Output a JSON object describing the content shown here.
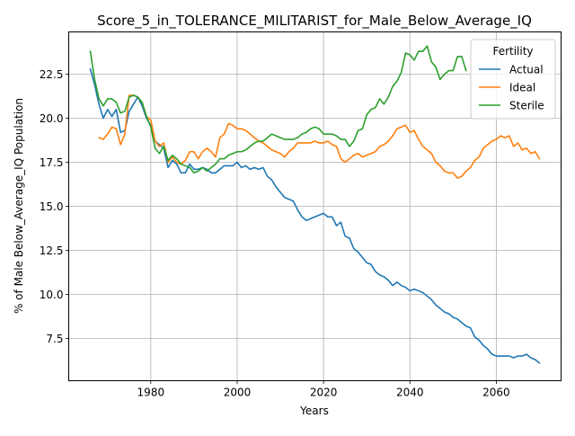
{
  "chart_data": {
    "type": "line",
    "title": "Score_5_in_TOLERANCE_MILITARIST_for_Male_Below_Average_IQ",
    "xlabel": "Years",
    "ylabel": "% of Male Below_Average_IQ Population",
    "xlim": [
      1961,
      2075
    ],
    "ylim": [
      5.1,
      24.9
    ],
    "xticks": [
      1980,
      2000,
      2020,
      2040,
      2060
    ],
    "yticks": [
      7.5,
      10.0,
      12.5,
      15.0,
      17.5,
      20.0,
      22.5
    ],
    "grid": true,
    "legend": {
      "title": "Fertility",
      "placement": "top-right"
    },
    "series": [
      {
        "name": "Actual",
        "color": "#1f77b4",
        "x": [
          1966,
          1967,
          1968,
          1969,
          1970,
          1971,
          1972,
          1973,
          1974,
          1975,
          1976,
          1977,
          1978,
          1979,
          1980,
          1981,
          1982,
          1983,
          1984,
          1985,
          1986,
          1987,
          1988,
          1989,
          1990,
          1991,
          1992,
          1993,
          1994,
          1995,
          1996,
          1997,
          1998,
          1999,
          2000,
          2001,
          2002,
          2003,
          2004,
          2005,
          2006,
          2007,
          2008,
          2009,
          2010,
          2011,
          2012,
          2013,
          2014,
          2015,
          2016,
          2017,
          2018,
          2019,
          2020,
          2021,
          2022,
          2023,
          2024,
          2025,
          2026,
          2027,
          2028,
          2029,
          2030,
          2031,
          2032,
          2033,
          2034,
          2035,
          2036,
          2037,
          2038,
          2039,
          2040,
          2041,
          2042,
          2043,
          2044,
          2045,
          2046,
          2047,
          2048,
          2049,
          2050,
          2051,
          2052,
          2053,
          2054,
          2055,
          2056,
          2057,
          2058,
          2059,
          2060,
          2061,
          2062,
          2063,
          2064,
          2065,
          2066,
          2067,
          2068,
          2069,
          2070
        ],
        "y": [
          22.8,
          21.9,
          20.8,
          20.0,
          20.5,
          20.1,
          20.5,
          19.2,
          19.3,
          20.4,
          20.8,
          21.2,
          20.7,
          20.0,
          19.6,
          18.7,
          18.5,
          18.3,
          17.2,
          17.6,
          17.4,
          16.9,
          16.9,
          17.4,
          17.1,
          17.1,
          17.2,
          17.1,
          16.9,
          16.9,
          17.1,
          17.3,
          17.3,
          17.3,
          17.5,
          17.2,
          17.3,
          17.1,
          17.2,
          17.1,
          17.2,
          16.7,
          16.5,
          16.1,
          15.8,
          15.5,
          15.4,
          15.3,
          14.8,
          14.4,
          14.2,
          14.3,
          14.4,
          14.5,
          14.6,
          14.4,
          14.4,
          13.9,
          14.1,
          13.3,
          13.2,
          12.6,
          12.4,
          12.1,
          11.8,
          11.7,
          11.3,
          11.1,
          11.0,
          10.8,
          10.5,
          10.7,
          10.5,
          10.4,
          10.2,
          10.3,
          10.2,
          10.1,
          9.9,
          9.7,
          9.4,
          9.2,
          9.0,
          8.9,
          8.7,
          8.6,
          8.4,
          8.2,
          8.1,
          7.6,
          7.4,
          7.1,
          6.9,
          6.6,
          6.5,
          6.5,
          6.5,
          6.5,
          6.4,
          6.5,
          6.5,
          6.6,
          6.4,
          6.3,
          6.1
        ],
        "note_removed": null
      },
      {
        "name": "Ideal",
        "color": "#ff7f0e",
        "x": [
          1968,
          1969,
          1970,
          1971,
          1972,
          1973,
          1974,
          1975,
          1976,
          1977,
          1978,
          1979,
          1980,
          1981,
          1982,
          1983,
          1984,
          1985,
          1986,
          1987,
          1988,
          1989,
          1990,
          1991,
          1992,
          1993,
          1994,
          1995,
          1996,
          1997,
          1998,
          1999,
          2000,
          2001,
          2002,
          2003,
          2004,
          2005,
          2006,
          2007,
          2008,
          2009,
          2010,
          2011,
          2012,
          2013,
          2014,
          2015,
          2016,
          2017,
          2018,
          2019,
          2020,
          2021,
          2022,
          2023,
          2024,
          2025,
          2026,
          2027,
          2028,
          2029,
          2030,
          2031,
          2032,
          2033,
          2034,
          2035,
          2036,
          2037,
          2038,
          2039,
          2040,
          2041,
          2042,
          2043,
          2044,
          2045,
          2046,
          2047,
          2048,
          2049,
          2050,
          2051,
          2052,
          2053,
          2054,
          2055,
          2056,
          2057,
          2058,
          2059,
          2060,
          2061,
          2062,
          2063,
          2064,
          2065,
          2066,
          2067,
          2068,
          2069,
          2070
        ],
        "y": [
          18.9,
          18.8,
          19.1,
          19.5,
          19.4,
          18.5,
          19.1,
          21.3,
          21.3,
          21.2,
          20.9,
          20.1,
          19.9,
          18.7,
          18.4,
          18.6,
          17.5,
          17.8,
          17.5,
          17.4,
          17.6,
          18.1,
          18.1,
          17.7,
          18.1,
          18.3,
          18.1,
          17.8,
          18.9,
          19.1,
          19.7,
          19.6,
          19.4,
          19.4,
          19.3,
          19.1,
          18.9,
          18.7,
          18.6,
          18.4,
          18.2,
          18.1,
          18.0,
          17.8,
          18.1,
          18.3,
          18.6,
          18.6,
          18.6,
          18.6,
          18.7,
          18.6,
          18.6,
          18.7,
          18.5,
          18.4,
          17.7,
          17.5,
          17.7,
          17.9,
          18.0,
          17.8,
          17.9,
          18.0,
          18.1,
          18.4,
          18.5,
          18.7,
          19.0,
          19.4,
          19.5,
          19.6,
          19.2,
          19.3,
          18.8,
          18.4,
          18.2,
          18.0,
          17.5,
          17.3,
          17.0,
          16.9,
          16.9,
          16.6,
          16.7,
          17.0,
          17.2,
          17.6,
          17.8,
          18.3,
          18.5,
          18.7,
          18.8,
          19.0,
          18.9,
          19.0,
          18.4,
          18.6,
          18.2,
          18.3,
          18.0,
          18.1,
          17.7
        ],
        "note_removed": null
      },
      {
        "name": "Sterile",
        "color": "#2ca02c",
        "x": [
          1966,
          1967,
          1968,
          1969,
          1970,
          1971,
          1972,
          1973,
          1974,
          1975,
          1976,
          1977,
          1978,
          1979,
          1980,
          1981,
          1982,
          1983,
          1984,
          1985,
          1986,
          1987,
          1988,
          1989,
          1990,
          1991,
          1992,
          1993,
          1994,
          1995,
          1996,
          1997,
          1998,
          1999,
          2000,
          2001,
          2002,
          2003,
          2004,
          2005,
          2006,
          2007,
          2008,
          2009,
          2010,
          2011,
          2012,
          2013,
          2014,
          2015,
          2016,
          2017,
          2018,
          2019,
          2020,
          2021,
          2022,
          2023,
          2024,
          2025,
          2026,
          2027,
          2028,
          2029,
          2030,
          2031,
          2032,
          2033,
          2034,
          2035,
          2036,
          2037,
          2038,
          2039,
          2040,
          2041,
          2042,
          2043,
          2044,
          2045,
          2046,
          2047,
          2048,
          2049,
          2050,
          2051,
          2052,
          2053
        ],
        "y": [
          23.8,
          22.2,
          21.1,
          20.7,
          21.1,
          21.1,
          20.9,
          20.3,
          20.4,
          21.2,
          21.3,
          21.2,
          20.9,
          20.1,
          19.5,
          18.3,
          18.0,
          18.4,
          17.6,
          17.9,
          17.7,
          17.4,
          17.3,
          17.2,
          16.9,
          17.0,
          17.2,
          17.0,
          17.2,
          17.4,
          17.7,
          17.7,
          17.9,
          18.0,
          18.1,
          18.1,
          18.2,
          18.4,
          18.6,
          18.7,
          18.7,
          18.9,
          19.1,
          19.0,
          18.9,
          18.8,
          18.8,
          18.8,
          18.9,
          19.1,
          19.2,
          19.4,
          19.5,
          19.4,
          19.1,
          19.1,
          19.1,
          19.0,
          18.8,
          18.8,
          18.4,
          18.7,
          19.3,
          19.4,
          20.2,
          20.5,
          20.6,
          21.1,
          20.8,
          21.2,
          21.8,
          22.1,
          22.6,
          23.7,
          23.6,
          23.3,
          23.8,
          23.8,
          24.1,
          23.2,
          22.9,
          22.2,
          22.5,
          22.7,
          22.7,
          23.5,
          23.5,
          22.7
        ],
        "note_removed": null
      }
    ]
  }
}
